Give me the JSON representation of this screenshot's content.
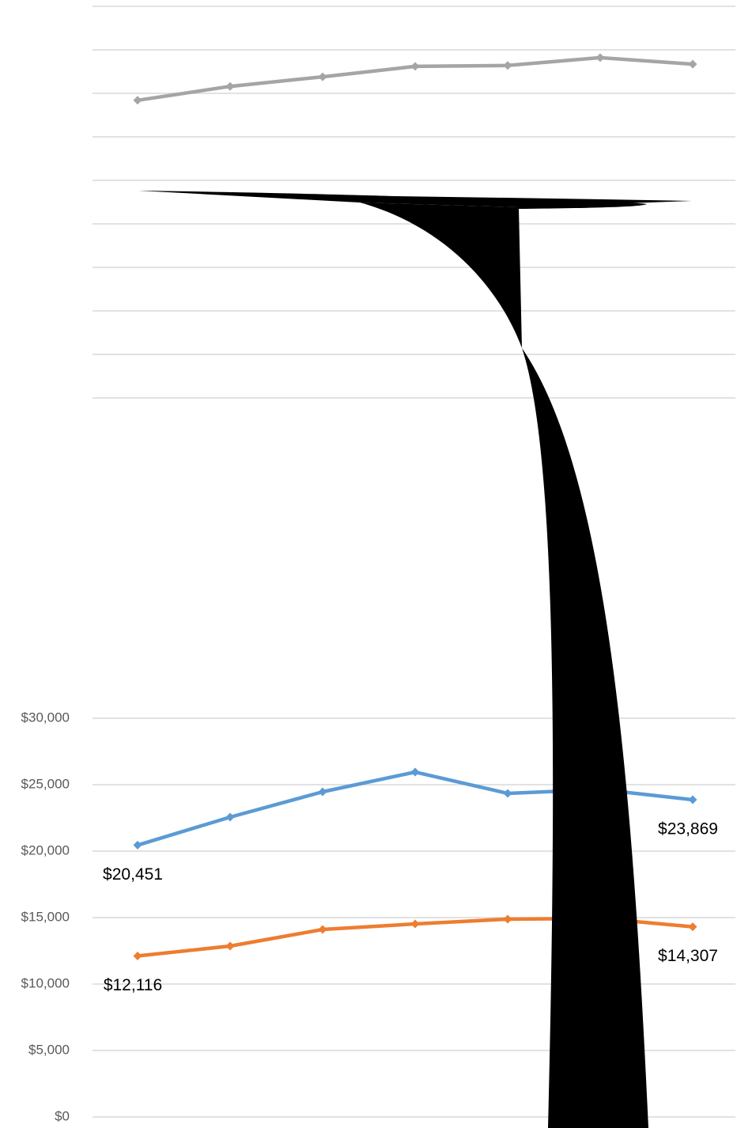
{
  "chart_data": [
    {
      "type": "line",
      "categories": [
        null,
        null,
        null,
        null,
        null,
        null,
        null
      ],
      "series": [
        {
          "name": null,
          "color": "#a5a5a5",
          "values": [
            6.84,
            7.16,
            7.38,
            7.62,
            7.64,
            7.82,
            7.67
          ]
        }
      ],
      "ylim": [
        0,
        9
      ],
      "yticks": [
        0,
        1,
        2,
        3,
        4,
        5,
        6,
        7,
        8,
        9
      ],
      "grid": true
    },
    {
      "type": "line",
      "categories": [
        null,
        null,
        null,
        null,
        null,
        null,
        null
      ],
      "series": [
        {
          "name": null,
          "color": "#5b9bd5",
          "values": [
            20451,
            22560,
            24464,
            25952,
            24345,
            24640,
            23869
          ],
          "value_labels": [
            "$20,451",
            null,
            null,
            null,
            null,
            null,
            "$23,869"
          ]
        },
        {
          "name": null,
          "color": "#ed7d31",
          "values": [
            12116,
            12857,
            14107,
            14524,
            14881,
            14940,
            14307
          ],
          "value_labels": [
            "$12,116",
            null,
            null,
            null,
            null,
            null,
            "$14,307"
          ]
        }
      ],
      "ylim": [
        0,
        30000
      ],
      "yticks": [
        {
          "value": 0,
          "label": "$0"
        },
        {
          "value": 5000,
          "label": "$5,000"
        },
        {
          "value": 10000,
          "label": "$10,000"
        },
        {
          "value": 15000,
          "label": "$15,000"
        },
        {
          "value": 20000,
          "label": "$20,000"
        },
        {
          "value": 25000,
          "label": "$25,000"
        },
        {
          "value": 30000,
          "label": "$30,000"
        }
      ],
      "grid": true
    }
  ]
}
